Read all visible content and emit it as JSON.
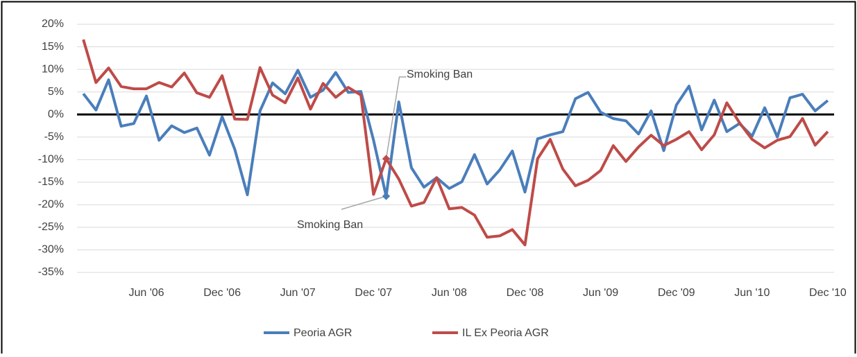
{
  "chart_data": {
    "type": "line",
    "categories": [
      null,
      null,
      null,
      null,
      null,
      "Jun '06",
      null,
      null,
      null,
      null,
      null,
      "Dec '06",
      null,
      null,
      null,
      null,
      null,
      "Jun '07",
      null,
      null,
      null,
      null,
      null,
      "Dec '07",
      null,
      null,
      null,
      null,
      null,
      "Jun '08",
      null,
      null,
      null,
      null,
      null,
      "Dec '08",
      null,
      null,
      null,
      null,
      null,
      "Jun '09",
      null,
      null,
      null,
      null,
      null,
      "Dec '09",
      null,
      null,
      null,
      null,
      null,
      "Jun '10",
      null,
      null,
      null,
      null,
      null,
      "Dec '10"
    ],
    "series": [
      {
        "name": "Peoria AGR",
        "color": "#4a7ebb",
        "values": [
          4.6,
          1,
          7.7,
          -2.6,
          -2,
          4.1,
          -5.7,
          -2.5,
          -4,
          -3,
          -9,
          -0.5,
          -7.7,
          -17.8,
          0.8,
          7,
          4.6,
          9.8,
          3.8,
          5.4,
          9.3,
          4.9,
          5.1,
          -5.7,
          -18.1,
          2.8,
          -11.8,
          -16.1,
          -14,
          -16.4,
          -14.9,
          -8.9,
          -15.4,
          -12.3,
          -8.1,
          -17.2,
          -5.4,
          -4.5,
          -3.8,
          3.5,
          4.9,
          0.5,
          -0.9,
          -1.4,
          -4.3,
          0.8,
          -8,
          2.1,
          6.3,
          -3.4,
          3.2,
          -3.8,
          -2,
          -4.8,
          1.5,
          -5,
          3.7,
          4.5,
          0.8,
          3.1
        ]
      },
      {
        "name": "IL Ex Peoria AGR",
        "color": "#be4b48",
        "values": [
          16.6,
          7.1,
          10.3,
          6.2,
          5.7,
          5.7,
          7.1,
          6.1,
          9.2,
          4.8,
          3.8,
          8.6,
          -1,
          -1.1,
          10.4,
          4.3,
          2.6,
          8.1,
          1.2,
          6.9,
          3.8,
          6,
          4.3,
          -17.7,
          -9.8,
          -14.3,
          -20.3,
          -19.5,
          -14,
          -20.9,
          -20.6,
          -22.3,
          -27.2,
          -26.9,
          -25.5,
          -28.9,
          -9.8,
          -5.5,
          -12.1,
          -15.8,
          -14.6,
          -12.4,
          -6.9,
          -10.4,
          -7.2,
          -4.6,
          -6.9,
          -5.5,
          -3.8,
          -7.8,
          -4.5,
          2.6,
          -1.8,
          -5.5,
          -7.4,
          -5.7,
          -4.9,
          -0.9,
          -6.8,
          -3.8
        ]
      }
    ],
    "annotations": [
      "Smoking Ban",
      "Smoking Ban"
    ],
    "ylim": [
      -35,
      20
    ],
    "yticks": [
      {
        "value": -35,
        "label": "-35%"
      },
      {
        "value": -30,
        "label": "-30%"
      },
      {
        "value": -25,
        "label": "-25%"
      },
      {
        "value": -20,
        "label": "-20%"
      },
      {
        "value": -15,
        "label": "-15%"
      },
      {
        "value": -10,
        "label": "-10%"
      },
      {
        "value": -5,
        "label": "-5%"
      },
      {
        "value": 0,
        "label": "0%"
      },
      {
        "value": 5,
        "label": "5%"
      },
      {
        "value": 10,
        "label": "10%"
      },
      {
        "value": 15,
        "label": "15%"
      },
      {
        "value": 20,
        "label": "20%"
      }
    ],
    "grid": true,
    "legend": "bottom"
  }
}
